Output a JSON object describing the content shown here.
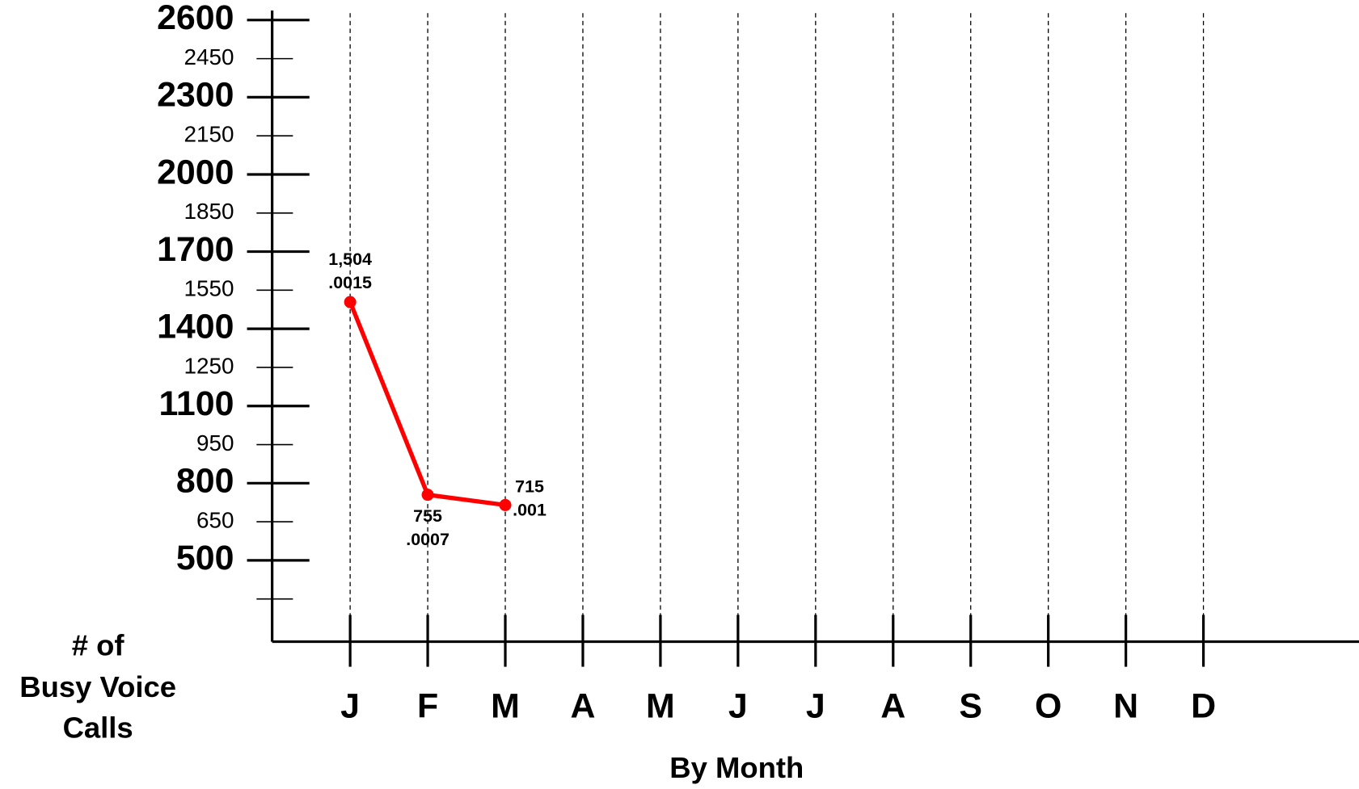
{
  "chart_data": {
    "type": "line",
    "y_axis_label": [
      "# of",
      "Busy Voice",
      "Calls"
    ],
    "x_axis_label": "By Month",
    "categories": [
      "J",
      "F",
      "M",
      "A",
      "M",
      "J",
      "J",
      "A",
      "S",
      "O",
      "N",
      "D"
    ],
    "series": [
      {
        "color": "#ff0000",
        "values": [
          1504,
          755,
          715,
          null,
          null,
          null,
          null,
          null,
          null,
          null,
          null,
          null
        ],
        "value_labels": [
          "1,504",
          "755",
          "715",
          null,
          null,
          null,
          null,
          null,
          null,
          null,
          null,
          null
        ],
        "rates": [
          0.0015,
          0.0007,
          0.001,
          null,
          null,
          null,
          null,
          null,
          null,
          null,
          null,
          null
        ],
        "rate_labels": [
          ".0015",
          ".0007",
          ".001",
          null,
          null,
          null,
          null,
          null,
          null,
          null,
          null,
          null
        ]
      }
    ],
    "ylim": [
      184,
      2637
    ],
    "yticks_major": [
      500,
      800,
      1100,
      1400,
      1700,
      2000,
      2300,
      2600
    ],
    "yticks_minor": [
      {
        "value": 350,
        "label": null
      },
      650,
      950,
      1250,
      1550,
      1850,
      2150,
      2450
    ],
    "grid": true
  }
}
